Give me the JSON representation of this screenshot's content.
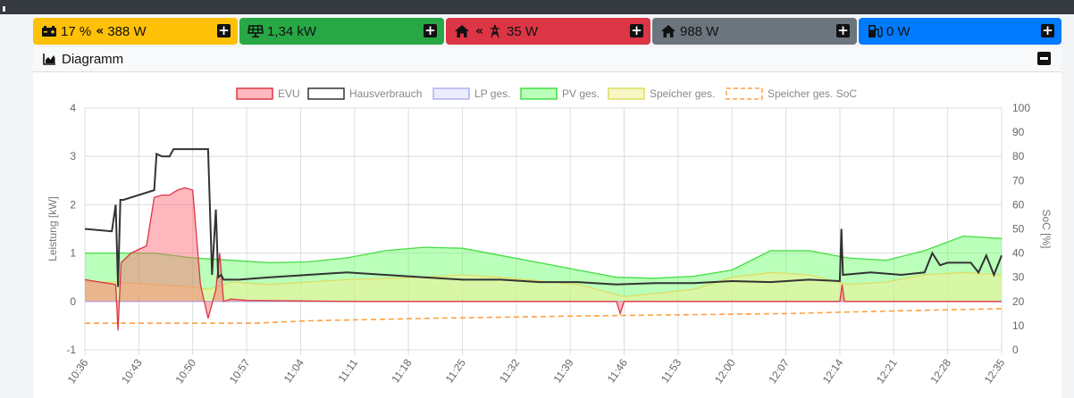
{
  "tiles": {
    "battery": {
      "percent": "17 %",
      "power": "388 W",
      "icon": "battery-icon",
      "direction_icon": "double-chevron-left-icon",
      "color": "#ffc107"
    },
    "pv": {
      "value": "1,34 kW",
      "icon": "solar-panel-icon",
      "color": "#28a745"
    },
    "grid": {
      "value": "35 W",
      "icon": "house-icon",
      "direction_icon": "double-chevron-left-icon",
      "grid_icon": "power-tower-icon",
      "color": "#dc3545"
    },
    "house": {
      "value": "988 W",
      "icon": "house-icon",
      "color": "#6c757d"
    },
    "charge": {
      "value": "0 W",
      "icon": "charging-station-icon",
      "color": "#007bff"
    }
  },
  "diagram": {
    "title": "Diagramm",
    "icon": "chart-area-icon"
  },
  "chart_data": {
    "type": "area",
    "ylabel": "Leistung [kW]",
    "y2label": "SoC [%]",
    "ylim": [
      -1,
      4
    ],
    "y2lim": [
      0,
      100
    ],
    "yticks": [
      "-1",
      "0",
      "1",
      "2",
      "3",
      "4"
    ],
    "y2ticks": [
      "0",
      "10",
      "20",
      "30",
      "40",
      "50",
      "60",
      "70",
      "80",
      "90",
      "100"
    ],
    "xticks": [
      "10:36",
      "10:43",
      "10:50",
      "10:57",
      "11:04",
      "11:11",
      "11:18",
      "11:25",
      "11:32",
      "11:39",
      "11:46",
      "11:53",
      "12:00",
      "12:07",
      "12:14",
      "12:21",
      "12:28",
      "12:35"
    ],
    "grid": true,
    "legend_position": "top",
    "legend": [
      "EVU",
      "Hausverbrauch",
      "LP ges.",
      "PV ges.",
      "Speicher ges.",
      "Speicher ges. SoC"
    ],
    "series": [
      {
        "name": "EVU",
        "color": "#dc3545",
        "fill": "rgba(255,100,110,0.45)",
        "x": [
          "10:36",
          "10:38",
          "10:40",
          "10:40.3",
          "10:40.7",
          "10:42",
          "10:44",
          "10:45",
          "10:46",
          "10:47",
          "10:48",
          "10:49",
          "10:50",
          "10:51",
          "10:52",
          "10:53",
          "10:53.5",
          "10:54",
          "10:55",
          "10:57",
          "11:11",
          "11:45",
          "11:45.5",
          "11:46",
          "12:14",
          "12:14.3",
          "12:14.6",
          "12:35"
        ],
        "values": [
          0.45,
          0.4,
          0.35,
          -0.6,
          0.8,
          1.0,
          1.15,
          2.15,
          2.2,
          2.2,
          2.3,
          2.35,
          2.3,
          0.35,
          -0.35,
          0.25,
          1.0,
          0.0,
          0.05,
          0.02,
          0.0,
          0.0,
          -0.25,
          0.0,
          0.0,
          0.35,
          0.0,
          0.0
        ]
      },
      {
        "name": "Hausverbrauch",
        "color": "#333333",
        "x": [
          "10:36",
          "10:39.5",
          "10:40",
          "10:40.3",
          "10:40.6",
          "10:41",
          "10:45",
          "10:45.3",
          "10:46",
          "10:47",
          "10:47.5",
          "10:48",
          "10:49",
          "10:52",
          "10:52.5",
          "10:53",
          "10:53.3",
          "10:53.7",
          "10:54",
          "10:56",
          "11:00",
          "11:05",
          "11:10",
          "11:15",
          "11:20",
          "11:25",
          "11:30",
          "11:35",
          "11:40",
          "11:45",
          "11:50",
          "11:55",
          "12:00",
          "12:05",
          "12:10",
          "12:14",
          "12:14.2",
          "12:14.4",
          "12:18",
          "12:22",
          "12:25",
          "12:26",
          "12:27",
          "12:28",
          "12:31",
          "12:32",
          "12:33",
          "12:34",
          "12:35"
        ],
        "values": [
          1.5,
          1.45,
          2.0,
          0.3,
          2.1,
          2.1,
          2.3,
          3.05,
          3.0,
          3.0,
          3.15,
          3.15,
          3.15,
          3.15,
          0.55,
          1.9,
          0.5,
          0.55,
          0.45,
          0.45,
          0.5,
          0.55,
          0.6,
          0.55,
          0.5,
          0.45,
          0.45,
          0.4,
          0.4,
          0.35,
          0.38,
          0.38,
          0.42,
          0.4,
          0.45,
          0.42,
          1.5,
          0.55,
          0.6,
          0.55,
          0.6,
          1.0,
          0.75,
          0.8,
          0.8,
          0.6,
          0.95,
          0.55,
          0.95
        ]
      },
      {
        "name": "LP ges.",
        "color": "#b0b0f0",
        "fill": "rgba(200,200,255,0.35)",
        "x": [
          "10:36",
          "12:35"
        ],
        "values": [
          0,
          0
        ]
      },
      {
        "name": "PV ges.",
        "color": "#44dd44",
        "fill": "rgba(102,255,102,0.45)",
        "x": [
          "10:36",
          "10:45",
          "10:50",
          "10:55",
          "11:00",
          "11:05",
          "11:10",
          "11:15",
          "11:20",
          "11:25",
          "11:30",
          "11:35",
          "11:40",
          "11:45",
          "11:50",
          "11:55",
          "12:00",
          "12:05",
          "12:10",
          "12:15",
          "12:20",
          "12:25",
          "12:30",
          "12:35"
        ],
        "values": [
          1.0,
          1.0,
          0.9,
          0.85,
          0.8,
          0.82,
          0.9,
          1.05,
          1.12,
          1.1,
          0.95,
          0.8,
          0.65,
          0.5,
          0.48,
          0.52,
          0.65,
          1.05,
          1.05,
          0.9,
          0.85,
          1.05,
          1.35,
          1.3
        ]
      },
      {
        "name": "Speicher ges.",
        "color": "#dddd66",
        "fill": "rgba(240,240,150,0.55)",
        "x": [
          "10:36",
          "10:40",
          "10:45",
          "10:50",
          "10:52",
          "10:55",
          "11:00",
          "11:10",
          "11:20",
          "11:25",
          "11:30",
          "11:40",
          "11:46",
          "11:55",
          "12:00",
          "12:05",
          "12:10",
          "12:15",
          "12:20",
          "12:25",
          "12:30",
          "12:35"
        ],
        "values": [
          0.4,
          0.4,
          0.35,
          0.3,
          0.25,
          0.4,
          0.35,
          0.45,
          0.5,
          0.55,
          0.5,
          0.35,
          0.1,
          0.25,
          0.5,
          0.6,
          0.55,
          0.35,
          0.4,
          0.55,
          0.6,
          0.55
        ]
      },
      {
        "name": "Speicher ges. SoC",
        "color": "#ffa040",
        "dash": true,
        "axis": "right",
        "x": [
          "10:36",
          "10:58",
          "11:05",
          "11:20",
          "11:40",
          "12:07",
          "12:20",
          "12:35"
        ],
        "values": [
          11,
          11,
          12,
          13,
          14,
          15,
          16,
          17
        ]
      }
    ]
  }
}
